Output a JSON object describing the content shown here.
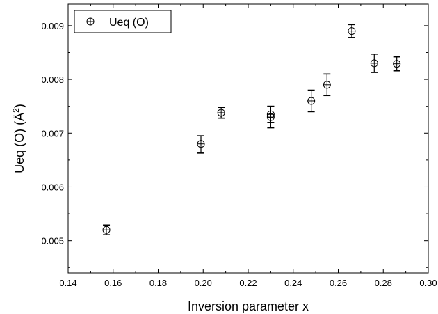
{
  "chart_data": {
    "type": "scatter",
    "xlabel": "Inversion parameter x",
    "ylabel_main": "Ueq (O) (Å",
    "ylabel_sup": "2",
    "ylabel_end": ")",
    "xlim": [
      0.14,
      0.3
    ],
    "ylim": [
      0.0044,
      0.0094
    ],
    "xticks": [
      0.14,
      0.16,
      0.18,
      0.2,
      0.22,
      0.24,
      0.26,
      0.28,
      0.3
    ],
    "xtick_labels": [
      "0.14",
      "0.16",
      "0.18",
      "0.20",
      "0.22",
      "0.24",
      "0.26",
      "0.28",
      "0.30"
    ],
    "yticks": [
      0.005,
      0.006,
      0.007,
      0.008,
      0.009
    ],
    "ytick_labels": [
      "0.005",
      "0.006",
      "0.007",
      "0.008",
      "0.009"
    ],
    "grid": false,
    "legend_position": "top-left",
    "series": [
      {
        "name": "Ueq (O)",
        "marker": "circle-plus",
        "points": [
          {
            "x": 0.157,
            "y": 0.0052,
            "err_low": 9e-05,
            "err_high": 9e-05
          },
          {
            "x": 0.199,
            "y": 0.0068,
            "err_low": 0.00017,
            "err_high": 0.00015
          },
          {
            "x": 0.208,
            "y": 0.00738,
            "err_low": 0.0001,
            "err_high": 0.0001
          },
          {
            "x": 0.23,
            "y": 0.0073,
            "err_low": 0.0002,
            "err_high": 0.0002
          },
          {
            "x": 0.23,
            "y": 0.00735,
            "err_low": 0.00015,
            "err_high": 0.00015
          },
          {
            "x": 0.248,
            "y": 0.0076,
            "err_low": 0.0002,
            "err_high": 0.0002
          },
          {
            "x": 0.255,
            "y": 0.0079,
            "err_low": 0.0002,
            "err_high": 0.0002
          },
          {
            "x": 0.266,
            "y": 0.0089,
            "err_low": 0.00012,
            "err_high": 0.00012
          },
          {
            "x": 0.276,
            "y": 0.0083,
            "err_low": 0.00017,
            "err_high": 0.00017
          },
          {
            "x": 0.286,
            "y": 0.00829,
            "err_low": 0.00013,
            "err_high": 0.00013
          }
        ]
      }
    ]
  }
}
